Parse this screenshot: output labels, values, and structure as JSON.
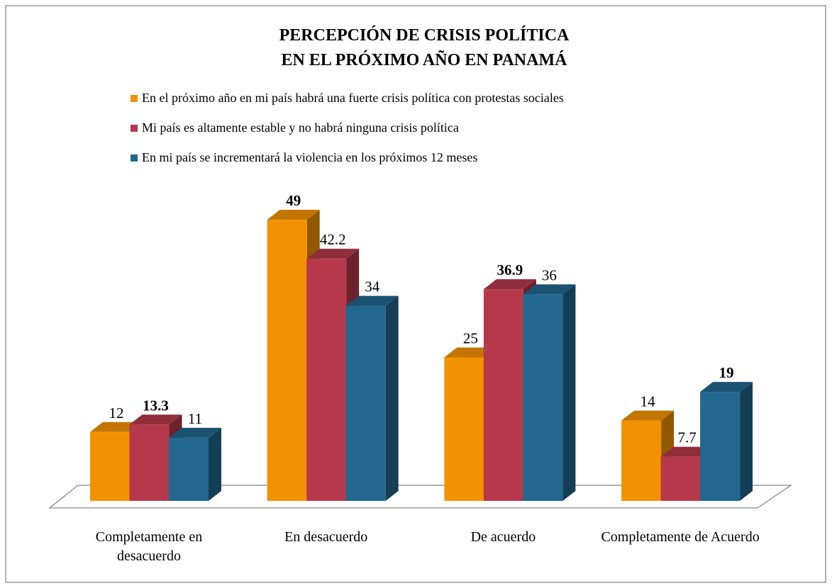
{
  "chart_data": {
    "type": "bar3d",
    "title": [
      "PERCEPCIÓN DE CRISIS POLÍTICA",
      "EN EL PRÓXIMO AÑO EN PANAMÁ"
    ],
    "categories": [
      "Completamente en desacuerdo",
      "En desacuerdo",
      "De acuerdo",
      "Completamente de Acuerdo"
    ],
    "series": [
      {
        "name": "En el próximo año en mi país habrá una fuerte crisis política con protestas sociales",
        "color": "#f39200",
        "values": [
          12,
          49,
          25,
          14
        ]
      },
      {
        "name": "Mi país es altamente estable y no habrá ninguna crisis política",
        "color": "#b5394a",
        "values": [
          13.3,
          42.2,
          36.9,
          7.7
        ]
      },
      {
        "name": "En mi país se incrementará la violencia en los próximos 12 meses",
        "color": "#22678f",
        "values": [
          11,
          34,
          36,
          19
        ]
      }
    ],
    "legend": "top"
  }
}
